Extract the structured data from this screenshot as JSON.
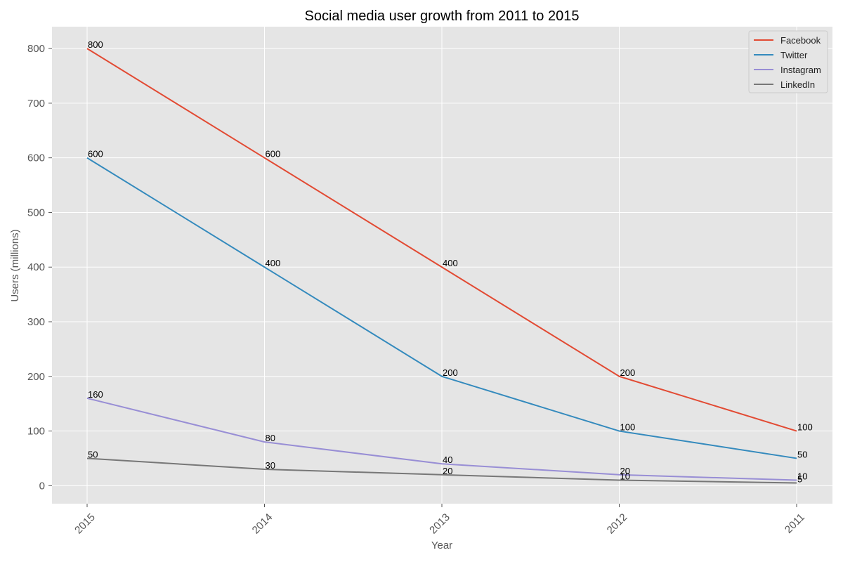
{
  "chart_data": {
    "type": "line",
    "title": "Social media user growth from 2011 to 2015",
    "xlabel": "Year",
    "ylabel": "Users (millions)",
    "categories": [
      "2015",
      "2014",
      "2013",
      "2012",
      "2011"
    ],
    "ylim": [
      -33,
      840
    ],
    "yticks": [
      0,
      100,
      200,
      300,
      400,
      500,
      600,
      700,
      800
    ],
    "grid": true,
    "legend_position": "top-right",
    "series": [
      {
        "name": "Facebook",
        "color": "#E24A33",
        "values": [
          800,
          600,
          400,
          200,
          100
        ]
      },
      {
        "name": "Twitter",
        "color": "#348ABD",
        "values": [
          600,
          400,
          200,
          100,
          50
        ]
      },
      {
        "name": "Instagram",
        "color": "#988ED5",
        "values": [
          160,
          80,
          40,
          20,
          10
        ]
      },
      {
        "name": "LinkedIn",
        "color": "#777777",
        "values": [
          50,
          30,
          20,
          10,
          5
        ]
      }
    ]
  }
}
